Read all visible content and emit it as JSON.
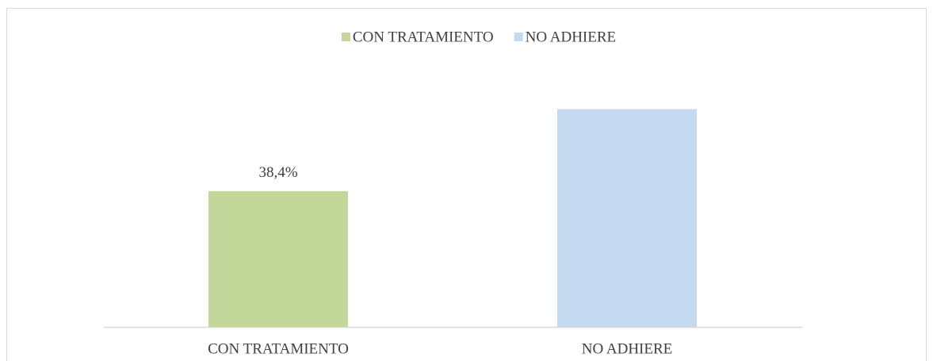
{
  "chart_data": {
    "type": "bar",
    "categories": [
      "CON TRATAMIENTO",
      "NO ADHIERE"
    ],
    "values": [
      38.4,
      61.6
    ],
    "value_labels": [
      "38,4%",
      null
    ],
    "colors": [
      "#c4d79b",
      "#c5d9f1"
    ],
    "legend": "top",
    "ylim": [
      0,
      70
    ]
  }
}
